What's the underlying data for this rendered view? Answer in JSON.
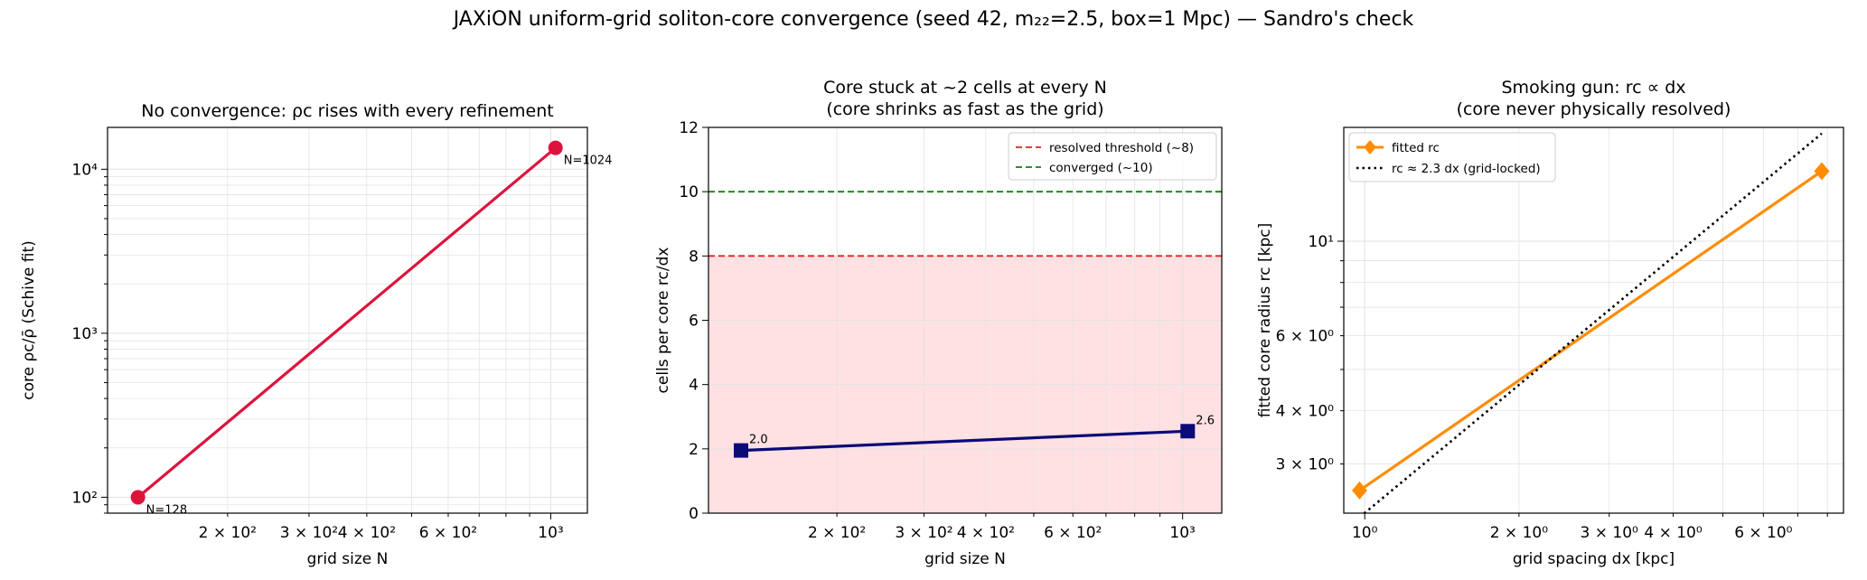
{
  "figure": {
    "suptitle": "JAXiON uniform-grid soliton-core convergence (seed 42, m₂₂=2.5, box=1 Mpc) — Sandro's check"
  },
  "chart_data": [
    {
      "type": "line",
      "title": "No convergence: ρc rises with every refinement",
      "xlabel": "grid size N",
      "ylabel": "core ρc/ρ̄ (Schive fit)",
      "xscale": "log",
      "yscale": "log",
      "xlim": [
        110,
        1200
      ],
      "ylim": [
        80,
        18000
      ],
      "grid": true,
      "xticks": [
        {
          "value": 200,
          "label": "2 × 10²"
        },
        {
          "value": 300,
          "label": "3 × 10²"
        },
        {
          "value": 400,
          "label": "4 × 10²"
        },
        {
          "value": 600,
          "label": "6 × 10²"
        },
        {
          "value": 1000,
          "label": "10³"
        }
      ],
      "yticks": [
        {
          "value": 100,
          "label": "10²"
        },
        {
          "value": 1000,
          "label": "10³"
        },
        {
          "value": 10000,
          "label": "10⁴"
        }
      ],
      "series": [
        {
          "color": "#dc143c",
          "marker": "circle",
          "x": [
            128,
            1024
          ],
          "y": [
            100,
            13500
          ]
        }
      ],
      "annotations": [
        {
          "text": "N=128",
          "x": 128,
          "y": 100
        },
        {
          "text": "N=1024",
          "x": 1024,
          "y": 13500
        }
      ]
    },
    {
      "type": "line",
      "title_lines": [
        "Core stuck at ~2 cells at every N",
        "(core shrinks as fast as the grid)"
      ],
      "xlabel": "grid size N",
      "ylabel": "cells per core  rc/dx",
      "xscale": "log",
      "yscale": "linear",
      "xlim": [
        110,
        1200
      ],
      "ylim": [
        0,
        12
      ],
      "grid": true,
      "xticks": [
        {
          "value": 200,
          "label": "2 × 10²"
        },
        {
          "value": 300,
          "label": "3 × 10²"
        },
        {
          "value": 400,
          "label": "4 × 10²"
        },
        {
          "value": 600,
          "label": "6 × 10²"
        },
        {
          "value": 1000,
          "label": "10³"
        }
      ],
      "yticks": [
        {
          "value": 0,
          "label": "0"
        },
        {
          "value": 2,
          "label": "2"
        },
        {
          "value": 4,
          "label": "4"
        },
        {
          "value": 6,
          "label": "6"
        },
        {
          "value": 8,
          "label": "8"
        },
        {
          "value": 10,
          "label": "10"
        },
        {
          "value": 12,
          "label": "12"
        }
      ],
      "shaded_band": {
        "y0": 0,
        "y1": 8,
        "color": "#ffe0e3"
      },
      "hlines": [
        {
          "y": 8,
          "color": "#e8201c",
          "label": "resolved threshold (~8)"
        },
        {
          "y": 10,
          "color": "#128012",
          "label": "converged (~10)"
        }
      ],
      "series": [
        {
          "color": "#0a0a78",
          "marker": "square",
          "x": [
            128,
            1024
          ],
          "y": [
            1.95,
            2.55
          ]
        }
      ],
      "annotations": [
        {
          "text": "2.0",
          "x": 128,
          "y": 1.95
        },
        {
          "text": "2.6",
          "x": 1024,
          "y": 2.55
        }
      ],
      "legend_position": "upper-right"
    },
    {
      "type": "line",
      "title_lines": [
        "Smoking gun: rc ∝ dx",
        "(core never physically resolved)"
      ],
      "xlabel": "grid spacing dx [kpc]",
      "ylabel": "fitted core radius rc [kpc]",
      "xscale": "log",
      "yscale": "log",
      "xlim": [
        0.91,
        8.6
      ],
      "ylim": [
        2.3,
        18.5
      ],
      "grid": true,
      "xticks": [
        {
          "value": 1,
          "label": "10⁰"
        },
        {
          "value": 2,
          "label": "2 × 10⁰"
        },
        {
          "value": 3,
          "label": "3 × 10⁰"
        },
        {
          "value": 4,
          "label": "4 × 10⁰"
        },
        {
          "value": 6,
          "label": "6 × 10⁰"
        }
      ],
      "yticks": [
        {
          "value": 3,
          "label": "3 × 10⁰"
        },
        {
          "value": 4,
          "label": "4 × 10⁰"
        },
        {
          "value": 6,
          "label": "6 × 10⁰"
        },
        {
          "value": 10,
          "label": "10¹"
        }
      ],
      "series": [
        {
          "name": "fitted rc",
          "color": "#ff8c00",
          "marker": "diamond",
          "x": [
            0.977,
            7.8
          ],
          "y": [
            2.6,
            14.6
          ]
        },
        {
          "name": "rc ≈ 2.3 dx (grid-locked)",
          "color": "#000000",
          "style": "dotted",
          "x": [
            0.977,
            7.8
          ],
          "y": [
            2.25,
            17.9
          ]
        }
      ],
      "legend_position": "upper-left"
    }
  ]
}
